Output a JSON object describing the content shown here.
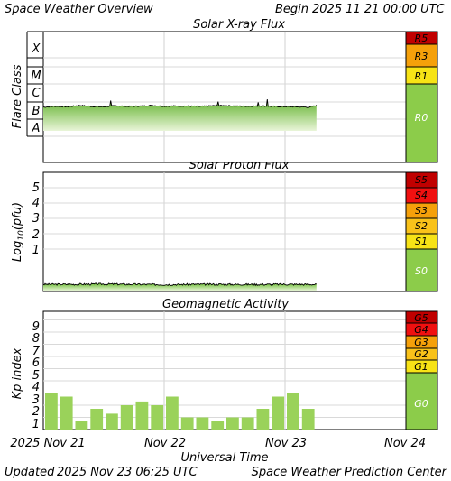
{
  "header": {
    "title": "Space Weather Overview",
    "begin_label": "Begin",
    "begin_date": "2025 11 21 00:00 UTC"
  },
  "footer": {
    "updated_label": "Updated",
    "updated_date": "2025 Nov 23 06:25 UTC",
    "credit": "Space Weather Prediction Center"
  },
  "xaxis": {
    "label": "Universal Time",
    "ticks": [
      "2025 Nov 21",
      "Nov 22",
      "Nov 23",
      "Nov 24"
    ]
  },
  "colors": {
    "green": "#8ccc4a",
    "yellow": "#f7e316",
    "orange": "#f5a00a",
    "red_orange": "#f06010",
    "red": "#e01010",
    "dark_red": "#c00000",
    "bar_green": "#9ad25a"
  },
  "chart_data": [
    {
      "type": "area",
      "title": "Solar X-ray Flux",
      "ylabel": "Flare Class",
      "categories": [
        "A",
        "B",
        "C",
        "M",
        "X"
      ],
      "xlim_days": [
        0,
        3
      ],
      "x": [
        0,
        0.1,
        0.2,
        0.3,
        0.4,
        0.5,
        0.6,
        0.7,
        0.8,
        0.9,
        1.0,
        1.1,
        1.2,
        1.3,
        1.4,
        1.5,
        1.6,
        1.7,
        1.8,
        1.9,
        2.0,
        2.1,
        2.2,
        2.26
      ],
      "y": [
        1.7,
        1.75,
        1.72,
        1.8,
        1.74,
        1.72,
        1.78,
        1.74,
        1.76,
        1.8,
        1.75,
        1.77,
        1.76,
        1.74,
        1.78,
        1.79,
        1.76,
        1.75,
        1.77,
        1.74,
        1.73,
        1.72,
        1.69,
        1.8
      ],
      "scale": [
        "R5",
        "R3",
        "R1",
        "R0"
      ]
    },
    {
      "type": "area",
      "title": "Solar Proton Flux",
      "ylabel": "Log10(pfu)",
      "ytick_labels": [
        "1",
        "2",
        "3",
        "4",
        "5"
      ],
      "ylim": [
        -2.5,
        6
      ],
      "xlim_days": [
        0,
        3
      ],
      "x": [
        0,
        0.25,
        0.5,
        0.75,
        1.0,
        1.25,
        1.5,
        1.75,
        2.0,
        2.26
      ],
      "y": [
        -1.3,
        -1.3,
        -1.28,
        -1.3,
        -1.32,
        -1.3,
        -1.3,
        -1.31,
        -1.3,
        -1.31
      ],
      "scale": [
        "S5",
        "S4",
        "S3",
        "S2",
        "S1",
        "S0"
      ]
    },
    {
      "type": "bar",
      "title": "Geomagnetic Activity",
      "ylabel": "Kp index",
      "ytick_labels": [
        "1",
        "2",
        "3",
        "4",
        "5",
        "6",
        "7",
        "8",
        "9"
      ],
      "ylim": [
        0,
        9.7
      ],
      "xlim_days": [
        0,
        3
      ],
      "bar_width_days": 0.125,
      "values": [
        3.0,
        2.7,
        0.7,
        1.7,
        1.3,
        2.0,
        2.3,
        2.0,
        2.7,
        1.0,
        1.0,
        0.7,
        1.0,
        1.0,
        1.7,
        2.7,
        3.0,
        1.7
      ],
      "scale": [
        "G5",
        "G4",
        "G3",
        "G2",
        "G1",
        "G0"
      ]
    }
  ]
}
